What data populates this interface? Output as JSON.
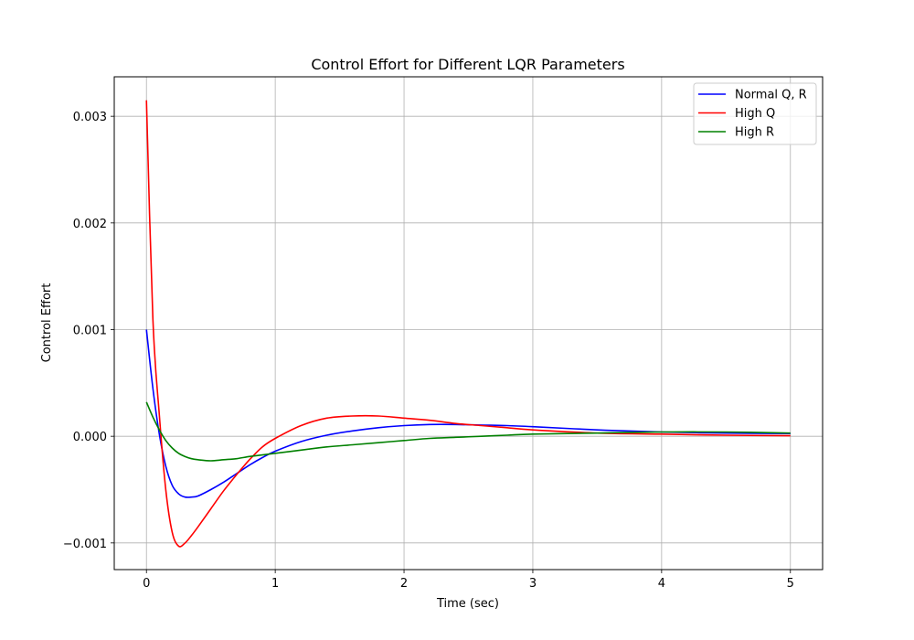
{
  "chart_data": {
    "type": "line",
    "title": "Control Effort for Different LQR Parameters",
    "xlabel": "Time (sec)",
    "ylabel": "Control Effort",
    "xlim": [
      -0.25,
      5.25
    ],
    "ylim": [
      -0.00125,
      0.00337
    ],
    "grid": true,
    "legend_position": "upper right",
    "x_ticks": [
      0,
      1,
      2,
      3,
      4,
      5
    ],
    "x_tick_labels": [
      "0",
      "1",
      "2",
      "3",
      "4",
      "5"
    ],
    "y_ticks": [
      -0.001,
      0.0,
      0.001,
      0.002,
      0.003
    ],
    "y_tick_labels": [
      "−0.001",
      "0.000",
      "0.001",
      "0.002",
      "0.003"
    ],
    "x": [
      0,
      0.05,
      0.1,
      0.15,
      0.2,
      0.25,
      0.3,
      0.35,
      0.4,
      0.5,
      0.6,
      0.7,
      0.8,
      0.9,
      1.0,
      1.2,
      1.4,
      1.6,
      1.8,
      2.0,
      2.2,
      2.4,
      2.6,
      2.8,
      3.0,
      3.5,
      4.0,
      4.5,
      5.0
    ],
    "series": [
      {
        "name": "Normal Q, R",
        "color": "#0000ff",
        "values": [
          0.001,
          0.00045,
          2e-05,
          -0.00028,
          -0.00046,
          -0.00054,
          -0.00057,
          -0.00057,
          -0.00056,
          -0.0005,
          -0.00043,
          -0.00035,
          -0.00027,
          -0.0002,
          -0.00014,
          -5e-05,
          1e-05,
          5e-05,
          8e-05,
          0.0001,
          0.00011,
          0.00011,
          0.000105,
          0.0001,
          9e-05,
          6e-05,
          4e-05,
          3e-05,
          2.5e-05
        ]
      },
      {
        "name": "High Q",
        "color": "#ff0000",
        "values": [
          0.00315,
          0.0011,
          0.0002,
          -0.0005,
          -0.0009,
          -0.00103,
          -0.001,
          -0.00093,
          -0.00085,
          -0.00068,
          -0.00051,
          -0.00036,
          -0.00022,
          -0.0001,
          -2e-05,
          0.0001,
          0.00017,
          0.00019,
          0.00019,
          0.00017,
          0.00015,
          0.00012,
          0.0001,
          8e-05,
          6e-05,
          3e-05,
          2e-05,
          1e-05,
          5e-06
        ]
      },
      {
        "name": "High R",
        "color": "#008000",
        "values": [
          0.00032,
          0.00018,
          6e-05,
          -4e-05,
          -0.00011,
          -0.00016,
          -0.00019,
          -0.00021,
          -0.00022,
          -0.00023,
          -0.00022,
          -0.00021,
          -0.00019,
          -0.000175,
          -0.00016,
          -0.00013,
          -0.0001,
          -8e-05,
          -6e-05,
          -4e-05,
          -2e-05,
          -1e-05,
          0.0,
          1e-05,
          2e-05,
          3e-05,
          4e-05,
          4e-05,
          3e-05
        ]
      }
    ]
  }
}
